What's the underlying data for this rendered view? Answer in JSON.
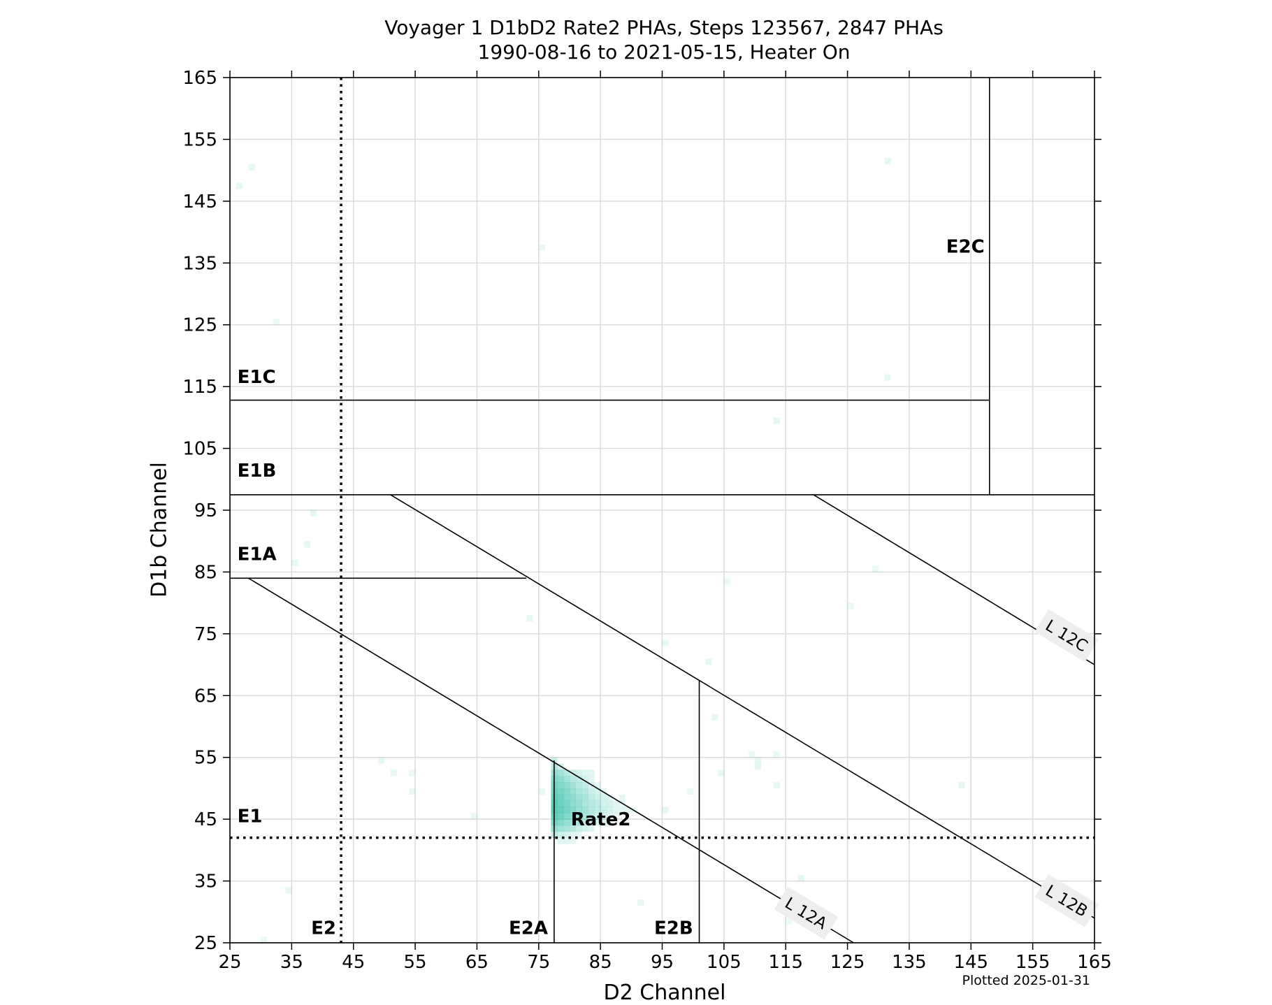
{
  "chart_data": {
    "type": "heatmap",
    "title": "Voyager 1 D1bD2 Rate2 PHAs, Steps 123567, 2847 PHAs",
    "subtitle": "1990-08-16 to 2021-05-15, Heater On",
    "xlabel": "D2 Channel",
    "ylabel": "D1b Channel",
    "xlim": [
      25,
      165
    ],
    "ylim": [
      25,
      165
    ],
    "xticks": [
      25,
      35,
      45,
      55,
      65,
      75,
      85,
      95,
      105,
      115,
      125,
      135,
      145,
      155,
      165
    ],
    "yticks": [
      25,
      35,
      45,
      55,
      65,
      75,
      85,
      95,
      105,
      115,
      125,
      135,
      145,
      155,
      165
    ],
    "grid": true,
    "cell_color": "#33bfa8",
    "cells": [
      {
        "x": 26,
        "y": 147,
        "v": 0.12
      },
      {
        "x": 28,
        "y": 150,
        "v": 0.12
      },
      {
        "x": 32,
        "y": 125,
        "v": 0.1
      },
      {
        "x": 75,
        "y": 137,
        "v": 0.1
      },
      {
        "x": 131,
        "y": 151,
        "v": 0.12
      },
      {
        "x": 131,
        "y": 116,
        "v": 0.12
      },
      {
        "x": 113,
        "y": 109,
        "v": 0.12
      },
      {
        "x": 38,
        "y": 94,
        "v": 0.12
      },
      {
        "x": 37,
        "y": 89,
        "v": 0.12
      },
      {
        "x": 35,
        "y": 86,
        "v": 0.1
      },
      {
        "x": 129,
        "y": 85,
        "v": 0.1
      },
      {
        "x": 105,
        "y": 83,
        "v": 0.1
      },
      {
        "x": 125,
        "y": 79,
        "v": 0.1
      },
      {
        "x": 73,
        "y": 77,
        "v": 0.12
      },
      {
        "x": 102,
        "y": 70,
        "v": 0.12
      },
      {
        "x": 95,
        "y": 73,
        "v": 0.1
      },
      {
        "x": 103,
        "y": 61,
        "v": 0.12
      },
      {
        "x": 104,
        "y": 52,
        "v": 0.12
      },
      {
        "x": 109,
        "y": 55,
        "v": 0.1
      },
      {
        "x": 110,
        "y": 54,
        "v": 0.12
      },
      {
        "x": 110,
        "y": 53,
        "v": 0.12
      },
      {
        "x": 113,
        "y": 55,
        "v": 0.1
      },
      {
        "x": 113,
        "y": 50,
        "v": 0.12
      },
      {
        "x": 143,
        "y": 50,
        "v": 0.12
      },
      {
        "x": 49,
        "y": 54,
        "v": 0.12
      },
      {
        "x": 51,
        "y": 52,
        "v": 0.12
      },
      {
        "x": 54,
        "y": 52,
        "v": 0.1
      },
      {
        "x": 54,
        "y": 49,
        "v": 0.12
      },
      {
        "x": 64,
        "y": 45,
        "v": 0.1
      },
      {
        "x": 75,
        "y": 49,
        "v": 0.1
      },
      {
        "x": 99,
        "y": 49,
        "v": 0.1
      },
      {
        "x": 95,
        "y": 46,
        "v": 0.12
      },
      {
        "x": 34,
        "y": 33,
        "v": 0.12
      },
      {
        "x": 91,
        "y": 31,
        "v": 0.12
      },
      {
        "x": 117,
        "y": 35,
        "v": 0.12
      },
      {
        "x": 115,
        "y": 28,
        "v": 0.1
      },
      {
        "x": 30,
        "y": 25,
        "v": 0.1
      },
      {
        "x": 77,
        "y": 54,
        "v": 0.25
      },
      {
        "x": 77,
        "y": 53,
        "v": 0.35
      },
      {
        "x": 78,
        "y": 53,
        "v": 0.25
      },
      {
        "x": 77,
        "y": 52,
        "v": 0.5
      },
      {
        "x": 78,
        "y": 52,
        "v": 0.45
      },
      {
        "x": 79,
        "y": 52,
        "v": 0.35
      },
      {
        "x": 80,
        "y": 52,
        "v": 0.25
      },
      {
        "x": 81,
        "y": 52,
        "v": 0.2
      },
      {
        "x": 82,
        "y": 52,
        "v": 0.15
      },
      {
        "x": 83,
        "y": 52,
        "v": 0.15
      },
      {
        "x": 77,
        "y": 51,
        "v": 0.6
      },
      {
        "x": 78,
        "y": 51,
        "v": 0.55
      },
      {
        "x": 79,
        "y": 51,
        "v": 0.45
      },
      {
        "x": 80,
        "y": 51,
        "v": 0.35
      },
      {
        "x": 81,
        "y": 51,
        "v": 0.3
      },
      {
        "x": 82,
        "y": 51,
        "v": 0.2
      },
      {
        "x": 83,
        "y": 51,
        "v": 0.15
      },
      {
        "x": 77,
        "y": 50,
        "v": 0.65
      },
      {
        "x": 78,
        "y": 50,
        "v": 0.6
      },
      {
        "x": 79,
        "y": 50,
        "v": 0.55
      },
      {
        "x": 80,
        "y": 50,
        "v": 0.45
      },
      {
        "x": 81,
        "y": 50,
        "v": 0.35
      },
      {
        "x": 82,
        "y": 50,
        "v": 0.3
      },
      {
        "x": 83,
        "y": 50,
        "v": 0.2
      },
      {
        "x": 84,
        "y": 50,
        "v": 0.15
      },
      {
        "x": 77,
        "y": 49,
        "v": 0.7
      },
      {
        "x": 78,
        "y": 49,
        "v": 0.65
      },
      {
        "x": 79,
        "y": 49,
        "v": 0.6
      },
      {
        "x": 80,
        "y": 49,
        "v": 0.5
      },
      {
        "x": 81,
        "y": 49,
        "v": 0.4
      },
      {
        "x": 82,
        "y": 49,
        "v": 0.35
      },
      {
        "x": 83,
        "y": 49,
        "v": 0.25
      },
      {
        "x": 84,
        "y": 49,
        "v": 0.2
      },
      {
        "x": 85,
        "y": 49,
        "v": 0.15
      },
      {
        "x": 77,
        "y": 48,
        "v": 0.75
      },
      {
        "x": 78,
        "y": 48,
        "v": 0.7
      },
      {
        "x": 79,
        "y": 48,
        "v": 0.6
      },
      {
        "x": 80,
        "y": 48,
        "v": 0.55
      },
      {
        "x": 81,
        "y": 48,
        "v": 0.45
      },
      {
        "x": 82,
        "y": 48,
        "v": 0.4
      },
      {
        "x": 83,
        "y": 48,
        "v": 0.3
      },
      {
        "x": 84,
        "y": 48,
        "v": 0.25
      },
      {
        "x": 85,
        "y": 48,
        "v": 0.2
      },
      {
        "x": 86,
        "y": 48,
        "v": 0.15
      },
      {
        "x": 88,
        "y": 48,
        "v": 0.12
      },
      {
        "x": 77,
        "y": 47,
        "v": 0.8
      },
      {
        "x": 78,
        "y": 47,
        "v": 0.7
      },
      {
        "x": 79,
        "y": 47,
        "v": 0.65
      },
      {
        "x": 80,
        "y": 47,
        "v": 0.55
      },
      {
        "x": 81,
        "y": 47,
        "v": 0.5
      },
      {
        "x": 82,
        "y": 47,
        "v": 0.4
      },
      {
        "x": 83,
        "y": 47,
        "v": 0.35
      },
      {
        "x": 84,
        "y": 47,
        "v": 0.3
      },
      {
        "x": 85,
        "y": 47,
        "v": 0.2
      },
      {
        "x": 86,
        "y": 47,
        "v": 0.2
      },
      {
        "x": 87,
        "y": 47,
        "v": 0.15
      },
      {
        "x": 88,
        "y": 47,
        "v": 0.12
      },
      {
        "x": 77,
        "y": 46,
        "v": 0.8
      },
      {
        "x": 78,
        "y": 46,
        "v": 0.75
      },
      {
        "x": 79,
        "y": 46,
        "v": 0.65
      },
      {
        "x": 80,
        "y": 46,
        "v": 0.6
      },
      {
        "x": 81,
        "y": 46,
        "v": 0.5
      },
      {
        "x": 82,
        "y": 46,
        "v": 0.45
      },
      {
        "x": 83,
        "y": 46,
        "v": 0.35
      },
      {
        "x": 84,
        "y": 46,
        "v": 0.3
      },
      {
        "x": 85,
        "y": 46,
        "v": 0.25
      },
      {
        "x": 86,
        "y": 46,
        "v": 0.2
      },
      {
        "x": 87,
        "y": 46,
        "v": 0.15
      },
      {
        "x": 88,
        "y": 46,
        "v": 0.15
      },
      {
        "x": 89,
        "y": 46,
        "v": 0.12
      },
      {
        "x": 90,
        "y": 46,
        "v": 0.1
      },
      {
        "x": 77,
        "y": 45,
        "v": 0.75
      },
      {
        "x": 78,
        "y": 45,
        "v": 0.7
      },
      {
        "x": 79,
        "y": 45,
        "v": 0.6
      },
      {
        "x": 80,
        "y": 45,
        "v": 0.55
      },
      {
        "x": 81,
        "y": 45,
        "v": 0.45
      },
      {
        "x": 82,
        "y": 45,
        "v": 0.4
      },
      {
        "x": 83,
        "y": 45,
        "v": 0.35
      },
      {
        "x": 84,
        "y": 45,
        "v": 0.25
      },
      {
        "x": 85,
        "y": 45,
        "v": 0.2
      },
      {
        "x": 86,
        "y": 45,
        "v": 0.15
      },
      {
        "x": 87,
        "y": 45,
        "v": 0.12
      },
      {
        "x": 77,
        "y": 44,
        "v": 0.65
      },
      {
        "x": 78,
        "y": 44,
        "v": 0.6
      },
      {
        "x": 79,
        "y": 44,
        "v": 0.5
      },
      {
        "x": 80,
        "y": 44,
        "v": 0.45
      },
      {
        "x": 81,
        "y": 44,
        "v": 0.4
      },
      {
        "x": 82,
        "y": 44,
        "v": 0.3
      },
      {
        "x": 83,
        "y": 44,
        "v": 0.25
      },
      {
        "x": 84,
        "y": 44,
        "v": 0.2
      },
      {
        "x": 85,
        "y": 44,
        "v": 0.15
      },
      {
        "x": 86,
        "y": 44,
        "v": 0.12
      },
      {
        "x": 77,
        "y": 43,
        "v": 0.5
      },
      {
        "x": 78,
        "y": 43,
        "v": 0.45
      },
      {
        "x": 79,
        "y": 43,
        "v": 0.4
      },
      {
        "x": 80,
        "y": 43,
        "v": 0.35
      },
      {
        "x": 81,
        "y": 43,
        "v": 0.25
      },
      {
        "x": 82,
        "y": 43,
        "v": 0.2
      },
      {
        "x": 83,
        "y": 43,
        "v": 0.15
      },
      {
        "x": 77,
        "y": 42,
        "v": 0.3
      },
      {
        "x": 78,
        "y": 42,
        "v": 0.25
      },
      {
        "x": 79,
        "y": 42,
        "v": 0.2
      },
      {
        "x": 80,
        "y": 42,
        "v": 0.15
      },
      {
        "x": 81,
        "y": 42,
        "v": 0.12
      },
      {
        "x": 78,
        "y": 41,
        "v": 0.15
      },
      {
        "x": 79,
        "y": 41,
        "v": 0.15
      },
      {
        "x": 80,
        "y": 41,
        "v": 0.12
      }
    ],
    "threshold_lines": [
      {
        "label": "E1",
        "orientation": "horizontal",
        "value": 42,
        "style": "dotted"
      },
      {
        "label": "E2",
        "orientation": "vertical",
        "value": 43,
        "style": "dotted"
      }
    ],
    "boundary_lines": [
      {
        "id": "e1a",
        "points": [
          [
            25,
            84
          ],
          [
            73,
            84
          ]
        ]
      },
      {
        "id": "e1b",
        "points": [
          [
            25,
            97.5
          ],
          [
            165,
            97.5
          ]
        ]
      },
      {
        "id": "e1c",
        "points": [
          [
            25,
            112.8
          ],
          [
            148,
            112.8
          ]
        ]
      },
      {
        "id": "e2a",
        "points": [
          [
            77.5,
            25
          ],
          [
            77.5,
            54.5
          ]
        ]
      },
      {
        "id": "e2b",
        "points": [
          [
            101,
            25
          ],
          [
            101,
            67.5
          ]
        ]
      },
      {
        "id": "e2c",
        "points": [
          [
            148,
            97.5
          ],
          [
            148,
            165
          ]
        ]
      },
      {
        "id": "l12a",
        "points": [
          [
            28,
            84
          ],
          [
            126,
            25
          ]
        ]
      },
      {
        "id": "l12b",
        "points": [
          [
            51,
            97.5
          ],
          [
            165,
            29
          ]
        ]
      },
      {
        "id": "l12c",
        "points": [
          [
            119.5,
            97.5
          ],
          [
            165,
            70
          ]
        ]
      }
    ],
    "region_labels": [
      {
        "text": "E1C",
        "x": 26.2,
        "y": 115.6,
        "anchor": "start"
      },
      {
        "text": "E1B",
        "x": 26.2,
        "y": 100.4,
        "anchor": "start"
      },
      {
        "text": "E1A",
        "x": 26.2,
        "y": 86.9,
        "anchor": "start"
      },
      {
        "text": "E1",
        "x": 26.2,
        "y": 44.5,
        "anchor": "start"
      },
      {
        "text": "E2",
        "x": 42.2,
        "y": 26.4,
        "anchor": "end"
      },
      {
        "text": "E2A",
        "x": 76.5,
        "y": 26.4,
        "anchor": "end"
      },
      {
        "text": "E2B",
        "x": 100,
        "y": 26.4,
        "anchor": "end"
      },
      {
        "text": "E2C",
        "x": 147.2,
        "y": 136.7,
        "anchor": "end"
      },
      {
        "text": "Rate2",
        "x": 80.2,
        "y": 44,
        "anchor": "start"
      }
    ],
    "line_labels": [
      {
        "text": "L 12A",
        "x": 118.3,
        "y": 29.8,
        "angle": 31
      },
      {
        "text": "L 12B",
        "x": 160.5,
        "y": 31.8,
        "angle": 31
      },
      {
        "text": "L 12C",
        "x": 160.5,
        "y": 74.7,
        "angle": 31
      }
    ],
    "footnote": "Plotted 2025-01-31"
  }
}
